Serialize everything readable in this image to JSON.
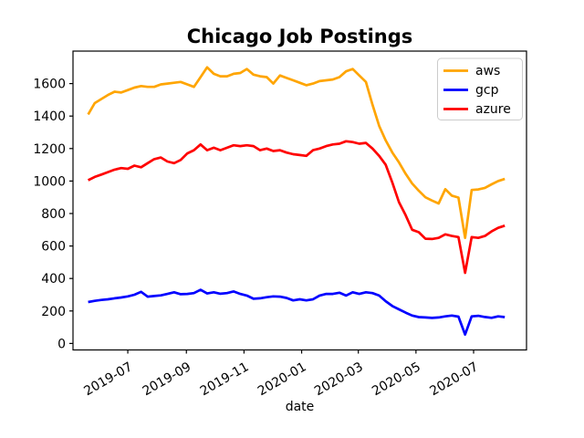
{
  "figure": {
    "title": "Chicago Job Postings",
    "xlabel": "date",
    "xlabel_color": "#8b0000",
    "background_color": "#ffffff",
    "frame_color": "#000000"
  },
  "chart_data": {
    "type": "line",
    "title": "Chicago Job Postings",
    "xlabel": "date",
    "ylabel": "",
    "grid": false,
    "legend_position": "upper right",
    "xlim": [
      "2019-05-04",
      "2020-08-26"
    ],
    "ylim": [
      -40,
      1800
    ],
    "yticks": [
      0,
      200,
      400,
      600,
      800,
      1000,
      1200,
      1400,
      1600
    ],
    "xticks": [
      {
        "date": "2019-07-01",
        "label": "2019-07"
      },
      {
        "date": "2019-09-01",
        "label": "2019-09"
      },
      {
        "date": "2019-11-01",
        "label": "2019-11"
      },
      {
        "date": "2020-01-01",
        "label": "2020-01"
      },
      {
        "date": "2020-03-01",
        "label": "2020-03"
      },
      {
        "date": "2020-05-01",
        "label": "2020-05"
      },
      {
        "date": "2020-07-01",
        "label": "2020-07"
      }
    ],
    "x": [
      "2019-05-20",
      "2019-05-27",
      "2019-06-03",
      "2019-06-10",
      "2019-06-17",
      "2019-06-24",
      "2019-07-01",
      "2019-07-08",
      "2019-07-15",
      "2019-07-22",
      "2019-07-29",
      "2019-08-05",
      "2019-08-12",
      "2019-08-19",
      "2019-08-26",
      "2019-09-02",
      "2019-09-09",
      "2019-09-16",
      "2019-09-23",
      "2019-09-30",
      "2019-10-07",
      "2019-10-14",
      "2019-10-21",
      "2019-10-28",
      "2019-11-04",
      "2019-11-11",
      "2019-11-18",
      "2019-11-25",
      "2019-12-02",
      "2019-12-09",
      "2019-12-16",
      "2019-12-23",
      "2019-12-30",
      "2020-01-06",
      "2020-01-13",
      "2020-01-20",
      "2020-01-27",
      "2020-02-03",
      "2020-02-10",
      "2020-02-17",
      "2020-02-24",
      "2020-03-02",
      "2020-03-09",
      "2020-03-16",
      "2020-03-23",
      "2020-03-30",
      "2020-04-06",
      "2020-04-13",
      "2020-04-20",
      "2020-04-27",
      "2020-05-04",
      "2020-05-11",
      "2020-05-18",
      "2020-05-25",
      "2020-06-01",
      "2020-06-08",
      "2020-06-15",
      "2020-06-22",
      "2020-06-29",
      "2020-07-06",
      "2020-07-13",
      "2020-07-20",
      "2020-07-27",
      "2020-08-03"
    ],
    "series": [
      {
        "name": "aws",
        "color": "#ffa500",
        "values": [
          1410,
          1480,
          1505,
          1530,
          1550,
          1545,
          1560,
          1575,
          1585,
          1580,
          1580,
          1595,
          1600,
          1605,
          1610,
          1595,
          1580,
          1640,
          1700,
          1660,
          1645,
          1645,
          1660,
          1665,
          1690,
          1655,
          1645,
          1640,
          1600,
          1650,
          1635,
          1620,
          1605,
          1590,
          1600,
          1615,
          1620,
          1625,
          1640,
          1675,
          1690,
          1650,
          1610,
          1470,
          1340,
          1250,
          1175,
          1115,
          1045,
          985,
          940,
          900,
          880,
          862,
          950,
          910,
          898,
          650,
          945,
          948,
          958,
          980,
          1000,
          1013
        ]
      },
      {
        "name": "gcp",
        "color": "#0000ff",
        "values": [
          255,
          262,
          268,
          272,
          278,
          283,
          290,
          300,
          318,
          288,
          292,
          296,
          305,
          315,
          303,
          305,
          310,
          330,
          308,
          315,
          306,
          310,
          320,
          305,
          295,
          275,
          278,
          285,
          290,
          288,
          280,
          265,
          272,
          265,
          272,
          295,
          305,
          305,
          312,
          295,
          315,
          305,
          315,
          310,
          295,
          260,
          230,
          210,
          190,
          172,
          162,
          160,
          157,
          160,
          167,
          172,
          165,
          55,
          167,
          170,
          163,
          158,
          167,
          162
        ]
      },
      {
        "name": "azure",
        "color": "#ff0000",
        "values": [
          1005,
          1025,
          1040,
          1055,
          1070,
          1080,
          1075,
          1095,
          1085,
          1110,
          1135,
          1145,
          1120,
          1110,
          1130,
          1170,
          1190,
          1225,
          1190,
          1205,
          1190,
          1205,
          1220,
          1215,
          1220,
          1215,
          1190,
          1200,
          1185,
          1190,
          1175,
          1165,
          1160,
          1155,
          1190,
          1200,
          1215,
          1225,
          1230,
          1245,
          1240,
          1230,
          1235,
          1200,
          1155,
          1100,
          990,
          870,
          790,
          700,
          685,
          645,
          643,
          650,
          672,
          662,
          655,
          435,
          655,
          650,
          662,
          690,
          712,
          725
        ]
      }
    ]
  }
}
